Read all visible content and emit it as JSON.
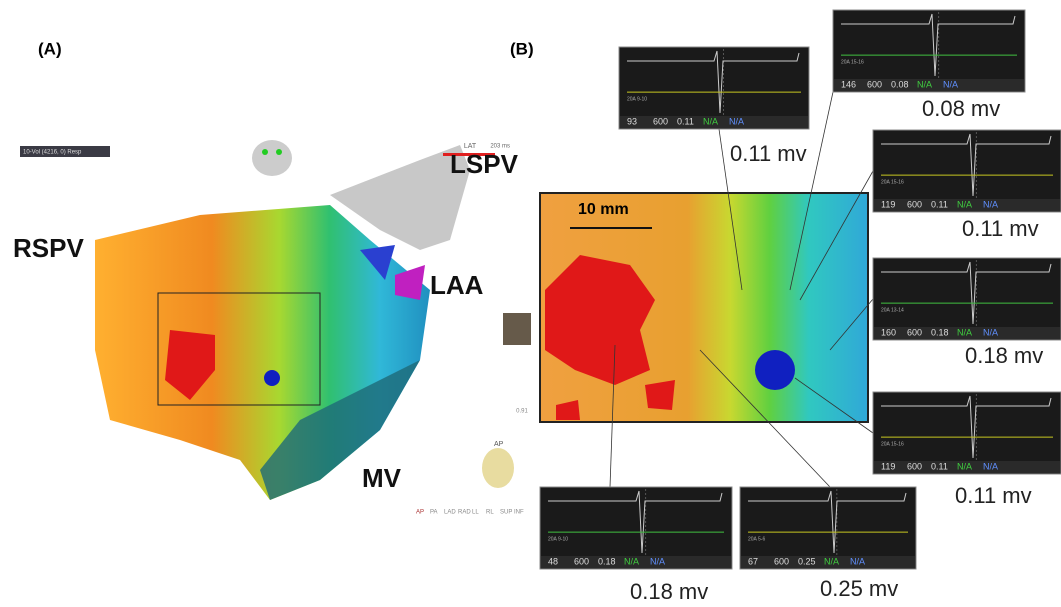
{
  "panel_a": {
    "label": "(A)",
    "dropdown": "10-Vol (4216, 0) Resp",
    "lat_label": "LAT",
    "lat_value": "203 ms",
    "anatomy": [
      "RSPV",
      "LSPV",
      "LAA",
      "MV"
    ],
    "view_value": "0.91",
    "orientation": "AP",
    "views": [
      "AP",
      "PA",
      "LAD",
      "RAD",
      "LL",
      "RL",
      "SUP",
      "INF"
    ]
  },
  "panel_b": {
    "label": "(B)",
    "scale": "10 mm",
    "egms": [
      {
        "channel": "20A 9-10",
        "footer": [
          "93",
          "600",
          "0.11",
          "N/A",
          "N/A"
        ],
        "voltage": "0.11 mv"
      },
      {
        "channel": "20A 15-16",
        "footer": [
          "146",
          "600",
          "0.08",
          "N/A",
          "N/A"
        ],
        "voltage": "0.08 mv"
      },
      {
        "channel": "20A 15-16",
        "footer": [
          "119",
          "600",
          "0.11",
          "N/A",
          "N/A"
        ],
        "voltage": "0.11 mv"
      },
      {
        "channel": "20A 13-14",
        "footer": [
          "160",
          "600",
          "0.18",
          "N/A",
          "N/A"
        ],
        "voltage": "0.18 mv"
      },
      {
        "channel": "20A 15-16",
        "footer": [
          "119",
          "600",
          "0.11",
          "N/A",
          "N/A"
        ],
        "voltage": "0.11 mv"
      },
      {
        "channel": "20A 9-10",
        "footer": [
          "48",
          "600",
          "0.18",
          "N/A",
          "N/A"
        ],
        "voltage": "0.18 mv"
      },
      {
        "channel": "20A 5-6",
        "footer": [
          "67",
          "600",
          "0.25",
          "N/A",
          "N/A"
        ],
        "voltage": "0.25 mv"
      }
    ]
  }
}
